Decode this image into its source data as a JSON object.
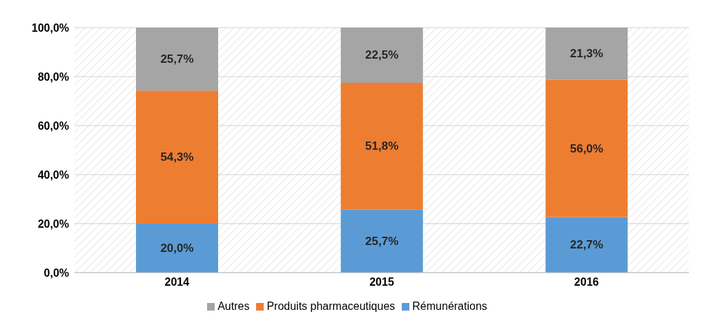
{
  "chart_data": {
    "type": "bar",
    "stacked": true,
    "categories": [
      "2014",
      "2015",
      "2016"
    ],
    "series": [
      {
        "name": "Rémunérations",
        "color": "#5b9bd5",
        "values": [
          20.0,
          25.7,
          22.7
        ],
        "value_labels": [
          "20,0%",
          "25,7%",
          "22,7%"
        ]
      },
      {
        "name": "Produits pharmaceutiques",
        "color": "#ed7d31",
        "values": [
          54.3,
          51.8,
          56.0
        ],
        "value_labels": [
          "54,3%",
          "51,8%",
          "56,0%"
        ]
      },
      {
        "name": "Autres",
        "color": "#a5a5a5",
        "values": [
          25.7,
          22.5,
          21.3
        ],
        "value_labels": [
          "25,7%",
          "22,5%",
          "21,3%"
        ]
      }
    ],
    "ylim": [
      0,
      100
    ],
    "yticks": [
      {
        "value": 0,
        "label": "0,0%"
      },
      {
        "value": 20,
        "label": "20,0%"
      },
      {
        "value": 40,
        "label": "40,0%"
      },
      {
        "value": 60,
        "label": "60,0%"
      },
      {
        "value": 80,
        "label": "80,0%"
      },
      {
        "value": 100,
        "label": "100,0%"
      }
    ],
    "grid": "y",
    "legend": "bottom"
  }
}
